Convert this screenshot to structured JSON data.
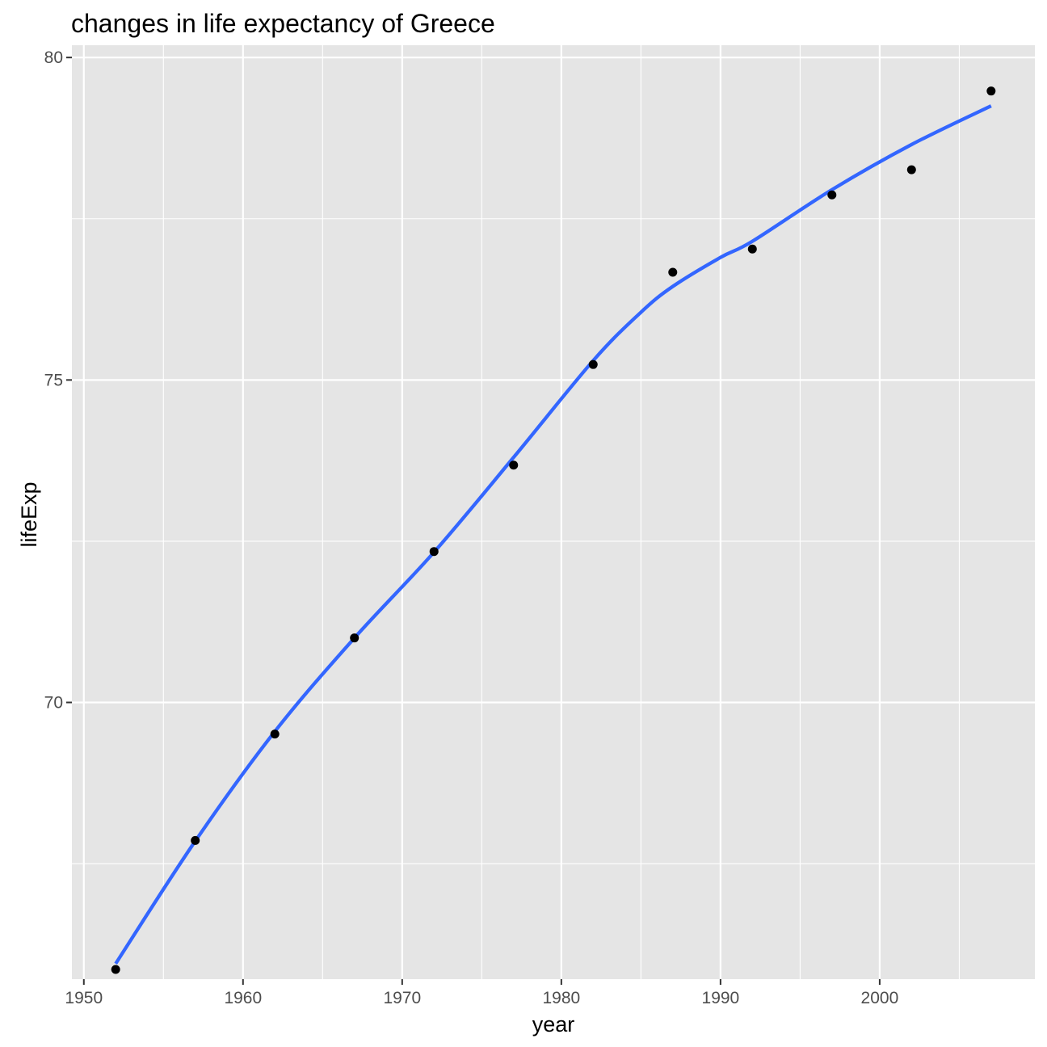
{
  "chart_data": {
    "type": "scatter",
    "title": "changes in life expectancy of Greece",
    "xlabel": "year",
    "ylabel": "lifeExp",
    "xlim": [
      1949.25,
      2009.75
    ],
    "ylim": [
      65.71,
      80.19
    ],
    "x_ticks": [
      1950,
      1960,
      1970,
      1980,
      1990,
      2000
    ],
    "x_tick_labels": [
      "1950",
      "1960",
      "1970",
      "1980",
      "1990",
      "2000"
    ],
    "x_minor_ticks": [
      1955,
      1965,
      1975,
      1985,
      1995,
      2005
    ],
    "y_ticks": [
      70,
      75,
      80
    ],
    "y_tick_labels": [
      "70",
      "75",
      "80"
    ],
    "y_minor_ticks": [
      67.5,
      72.5,
      77.5
    ],
    "grid": true,
    "legend": "none",
    "series": [
      {
        "kind": "points",
        "x": [
          1952,
          1957,
          1962,
          1967,
          1972,
          1977,
          1982,
          1987,
          1992,
          1997,
          2002,
          2007
        ],
        "y": [
          65.86,
          67.86,
          69.51,
          71.0,
          72.34,
          73.68,
          75.24,
          76.67,
          77.03,
          77.87,
          78.26,
          79.48
        ],
        "color": "#000000"
      },
      {
        "kind": "smooth",
        "x": [
          1952,
          1957,
          1962,
          1967,
          1972,
          1977,
          1982,
          1985,
          1987,
          1990,
          1992,
          1997,
          2002,
          2007
        ],
        "y": [
          65.95,
          67.85,
          69.55,
          71.0,
          72.33,
          73.8,
          75.3,
          76.05,
          76.45,
          76.9,
          77.15,
          77.95,
          78.65,
          79.25
        ],
        "color": "#3366FF"
      }
    ],
    "panel_background": "#E5E5E5",
    "gridline_color": "#FFFFFF"
  }
}
